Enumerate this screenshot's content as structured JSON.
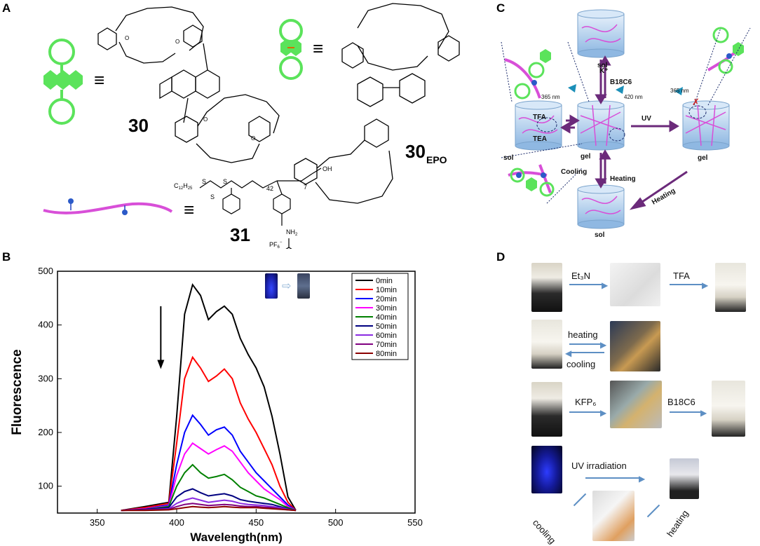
{
  "panels": {
    "a": "A",
    "b": "B",
    "c": "C",
    "d": "D"
  },
  "panel_a": {
    "equiv_symbol": "≡",
    "label_30": "30",
    "label_30epo_main": "30",
    "label_30epo_sub": "EPO",
    "label_31": "31",
    "formula_c12": "C",
    "formula_c12_sub": "12",
    "formula_h25_sub": "25",
    "repeat_42": "42",
    "repeat_7": "7",
    "oh": "OH",
    "nh2": "NH",
    "nh2_sub": "2",
    "pf6": "PF",
    "pf6_sub": "6",
    "pf6_sup": "−",
    "o_atom": "O",
    "s_atom": "S"
  },
  "panel_c": {
    "sol_top": "sol",
    "sol_left": "sol",
    "sol_bottom": "sol",
    "gel_center": "gel",
    "gel_right": "gel",
    "k_plus": "K⁺",
    "b18c6": "B18C6",
    "nm365_left": "365 nm",
    "nm420": "420 nm",
    "nm365_right": "365 nm",
    "tfa": "TFA",
    "tea": "TEA",
    "uv": "UV",
    "cooling": "Cooling",
    "heating": "Heating",
    "heating_diag": "Heating"
  },
  "panel_d": {
    "et3n": "Et₃N",
    "tfa": "TFA",
    "heating": "heating",
    "cooling": "cooling",
    "kfp6": "KFP₆",
    "b18c6": "B18C6",
    "uv_irradiation": "UV irradiation",
    "heating_bottom": "heating",
    "cooling_bottom": "cooling"
  },
  "colors": {
    "green": "#5be35b",
    "magenta": "#d84fd8",
    "arrow_purple": "#6b2a7a",
    "arrow_blue": "#5d8fc4"
  },
  "chart_data": {
    "type": "line",
    "xlabel": "Wavelength(nm)",
    "ylabel": "Fluorescence",
    "xlim": [
      325,
      550
    ],
    "ylim": [
      50,
      500
    ],
    "xticks": [
      350,
      400,
      450,
      500,
      550
    ],
    "yticks": [
      100,
      200,
      300,
      400,
      500
    ],
    "annotation": "downward arrow indicating decreasing intensity over time; inset vial photos before/after",
    "legend_position": "top-right",
    "series": [
      {
        "name": "0min",
        "color": "#000000",
        "peak1": 475,
        "peak2": 435,
        "x": [
          365,
          380,
          395,
          400,
          405,
          410,
          415,
          420,
          425,
          430,
          435,
          440,
          445,
          450,
          455,
          460,
          465,
          470,
          475
        ],
        "y": [
          55,
          62,
          70,
          230,
          420,
          475,
          455,
          410,
          425,
          435,
          420,
          375,
          345,
          320,
          285,
          230,
          160,
          80,
          55
        ]
      },
      {
        "name": "10min",
        "color": "#ff0000",
        "x": [
          365,
          380,
          395,
          400,
          405,
          410,
          415,
          420,
          425,
          430,
          435,
          440,
          445,
          450,
          455,
          460,
          465,
          470,
          475
        ],
        "y": [
          55,
          60,
          68,
          180,
          300,
          340,
          320,
          295,
          305,
          318,
          300,
          255,
          225,
          200,
          170,
          140,
          100,
          70,
          55
        ]
      },
      {
        "name": "20min",
        "color": "#0000ff",
        "x": [
          365,
          380,
          395,
          400,
          405,
          410,
          415,
          420,
          425,
          430,
          435,
          440,
          445,
          450,
          455,
          460,
          465,
          470,
          475
        ],
        "y": [
          55,
          58,
          65,
          140,
          200,
          232,
          215,
          195,
          205,
          210,
          195,
          165,
          145,
          125,
          110,
          95,
          80,
          65,
          55
        ]
      },
      {
        "name": "30min",
        "color": "#ff00ff",
        "x": [
          365,
          380,
          395,
          400,
          405,
          410,
          415,
          420,
          425,
          430,
          435,
          440,
          445,
          450,
          455,
          460,
          465,
          470,
          475
        ],
        "y": [
          55,
          58,
          63,
          120,
          160,
          180,
          170,
          160,
          168,
          175,
          165,
          145,
          125,
          110,
          95,
          85,
          75,
          62,
          55
        ]
      },
      {
        "name": "40min",
        "color": "#008000",
        "x": [
          365,
          380,
          395,
          400,
          405,
          410,
          415,
          420,
          425,
          430,
          435,
          440,
          445,
          450,
          455,
          460,
          465,
          470,
          475
        ],
        "y": [
          55,
          57,
          62,
          100,
          125,
          140,
          125,
          115,
          118,
          122,
          112,
          98,
          90,
          82,
          78,
          72,
          66,
          60,
          55
        ]
      },
      {
        "name": "50min",
        "color": "#000080",
        "x": [
          365,
          380,
          395,
          400,
          405,
          410,
          415,
          420,
          425,
          430,
          435,
          440,
          445,
          450,
          455,
          460,
          465,
          470,
          475
        ],
        "y": [
          55,
          57,
          60,
          80,
          90,
          95,
          88,
          82,
          84,
          86,
          82,
          75,
          72,
          70,
          68,
          66,
          62,
          58,
          55
        ]
      },
      {
        "name": "60min",
        "color": "#8a2be2",
        "x": [
          365,
          380,
          395,
          400,
          405,
          410,
          415,
          420,
          425,
          430,
          435,
          440,
          445,
          450,
          455,
          460,
          465,
          470,
          475
        ],
        "y": [
          55,
          56,
          58,
          68,
          74,
          78,
          74,
          70,
          72,
          74,
          72,
          68,
          66,
          65,
          64,
          62,
          60,
          57,
          55
        ]
      },
      {
        "name": "70min",
        "color": "#800080",
        "x": [
          365,
          380,
          395,
          400,
          405,
          410,
          415,
          420,
          425,
          430,
          435,
          440,
          445,
          450,
          455,
          460,
          465,
          470,
          475
        ],
        "y": [
          55,
          56,
          57,
          62,
          66,
          68,
          66,
          64,
          65,
          66,
          65,
          63,
          62,
          62,
          61,
          60,
          58,
          56,
          55
        ]
      },
      {
        "name": "80min",
        "color": "#8b0000",
        "x": [
          365,
          380,
          395,
          400,
          405,
          410,
          415,
          420,
          425,
          430,
          435,
          440,
          445,
          450,
          455,
          460,
          465,
          470,
          475
        ],
        "y": [
          55,
          55,
          56,
          58,
          60,
          62,
          61,
          60,
          61,
          62,
          61,
          60,
          60,
          60,
          59,
          58,
          57,
          56,
          55
        ]
      }
    ]
  }
}
